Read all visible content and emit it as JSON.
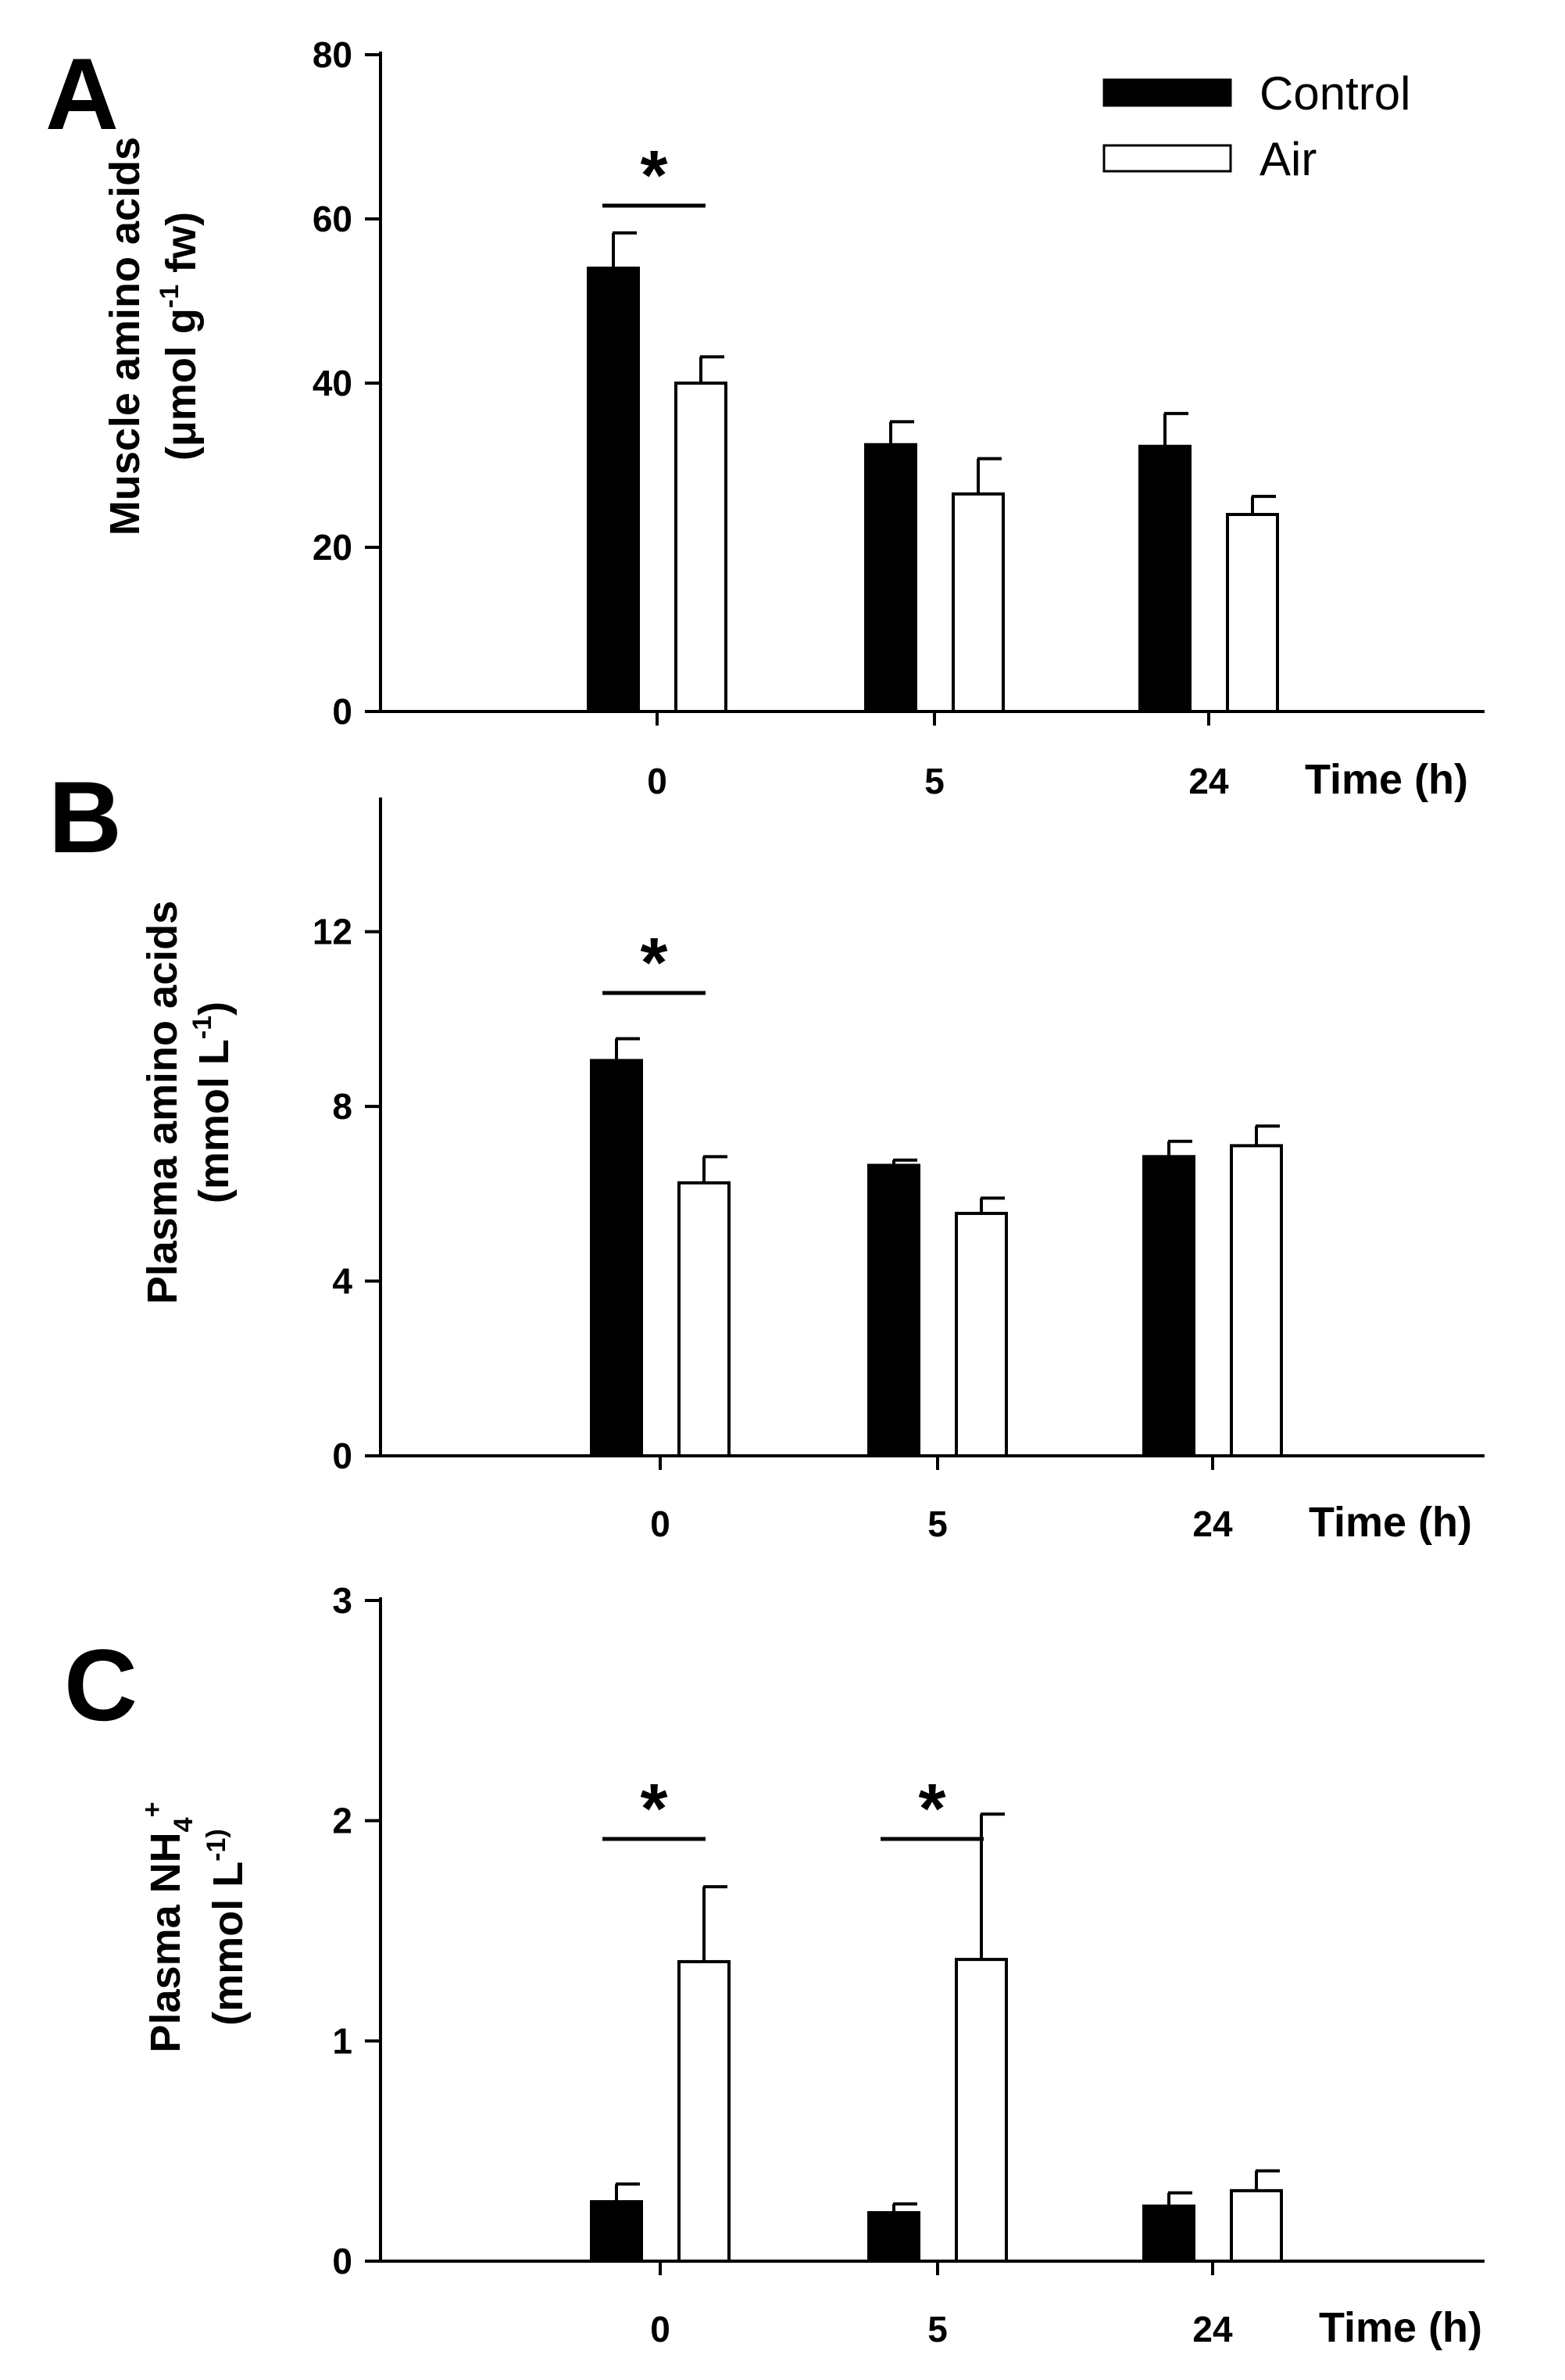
{
  "chart_data": [
    {
      "type": "bar",
      "panel": "A",
      "categories": [
        "0",
        "5",
        "24"
      ],
      "xlabel": "Time (h)",
      "ylabel": {
        "line1": "Muscle amino acids",
        "line2_pre": "(μmol g",
        "line2_sup": "-1",
        "line2_post": " fw)"
      },
      "ylim": [
        0,
        80
      ],
      "yticks": [
        0,
        20,
        40,
        60,
        80
      ],
      "series": [
        {
          "name": "Control",
          "values": [
            54,
            32.5,
            32.3
          ],
          "errors": [
            4.3,
            2.8,
            4.0
          ]
        },
        {
          "name": "Air",
          "values": [
            40,
            26.5,
            24
          ],
          "errors": [
            3.2,
            4.3,
            2.2
          ]
        }
      ],
      "significance": [
        {
          "category": "0",
          "label": "*"
        }
      ],
      "legend": {
        "position": "top-right",
        "entries": [
          "Control",
          "Air"
        ]
      }
    },
    {
      "type": "bar",
      "panel": "B",
      "categories": [
        "0",
        "5",
        "24"
      ],
      "xlabel": "Time (h)",
      "ylabel": {
        "line1": "Plasma amino acids",
        "line2_pre": "(mmol L",
        "line2_sup": "-1",
        "line2_post": ")"
      },
      "ylim": [
        0,
        15
      ],
      "yticks": [
        0,
        4,
        8,
        12
      ],
      "series": [
        {
          "name": "Control",
          "values": [
            9.05,
            6.65,
            6.85
          ],
          "errors": [
            0.5,
            0.12,
            0.35
          ]
        },
        {
          "name": "Air",
          "values": [
            6.25,
            5.55,
            7.1
          ],
          "errors": [
            0.6,
            0.35,
            0.45
          ]
        }
      ],
      "significance": [
        {
          "category": "0",
          "label": "*"
        }
      ]
    },
    {
      "type": "bar",
      "panel": "C",
      "categories": [
        "0",
        "5",
        "24"
      ],
      "xlabel": "Time (h)",
      "ylabel": {
        "line1_pre": "Plasma NH",
        "line1_sub": "4",
        "line1_sup": "+",
        "line2_pre": "(mmol L",
        "line2_sup": "-1)",
        "line2_post": ""
      },
      "ylim": [
        0,
        3
      ],
      "yticks": [
        0,
        1,
        2,
        3
      ],
      "series": [
        {
          "name": "Control",
          "values": [
            0.27,
            0.22,
            0.25
          ],
          "errors": [
            0.08,
            0.04,
            0.06
          ]
        },
        {
          "name": "Air",
          "values": [
            1.36,
            1.37,
            0.32
          ],
          "errors": [
            0.34,
            0.66,
            0.09
          ]
        }
      ],
      "significance": [
        {
          "category": "0",
          "label": "*"
        },
        {
          "category": "5",
          "label": "*"
        }
      ]
    }
  ],
  "colors": {
    "control_fill": "#000000",
    "air_fill": "#ffffff",
    "axis": "#000000"
  },
  "panels": {
    "A": "A",
    "B": "B",
    "C": "C"
  }
}
